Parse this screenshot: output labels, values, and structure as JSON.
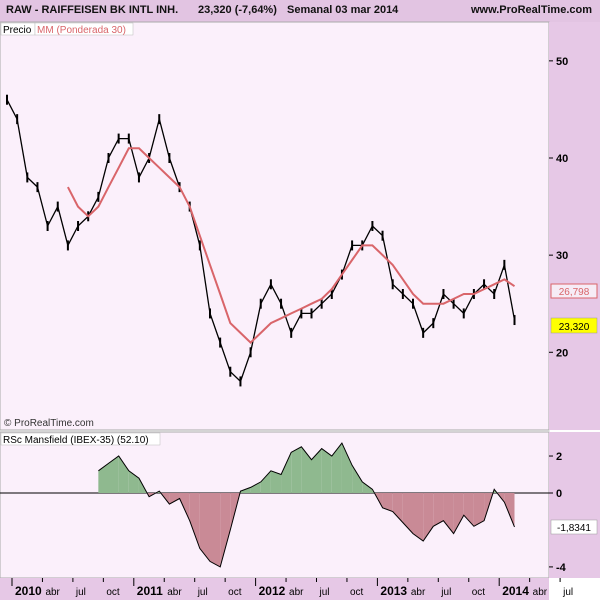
{
  "header": {
    "ticker": "RAW - RAIFFEISEN BK INTL INH.",
    "last_change": "23,320 (-7,64%)",
    "period": "Semanal  03 mar 2014",
    "site": "www.ProRealTime.com"
  },
  "price_panel": {
    "legend_price": "Precio",
    "legend_ma": "MM (Ponderada 30)",
    "copyright": "© ProRealTime.com",
    "last_price_label": "23,320",
    "last_ma_label": "26,798"
  },
  "rsc_panel": {
    "legend": "RSc Mansfield (IBEX-35) (52.10)",
    "last_value_label": "-1,8341"
  },
  "colors": {
    "panel_bg": "#fbf0fb",
    "axis_bg": "#e6c8e6",
    "ma_line": "#d9656a",
    "positive_fill": "#8fb98f",
    "negative_fill": "#c98a96",
    "last_price_box": "#ffff00"
  },
  "chart_data": [
    {
      "type": "line",
      "name": "price",
      "x_axis_labels": [
        "2010",
        "abr",
        "jul",
        "oct",
        "2011",
        "abr",
        "jul",
        "oct",
        "2012",
        "abr",
        "jul",
        "oct",
        "2013",
        "abr",
        "jul",
        "oct",
        "2014",
        "abr",
        "jul"
      ],
      "ylim": [
        12,
        54
      ],
      "y_ticks": [
        20,
        30,
        40,
        50
      ],
      "y_tick_labels": [
        "20",
        "30",
        "40",
        "50"
      ],
      "series": [
        {
          "name": "Precio",
          "x": [
            "2010-01",
            "2010-02",
            "2010-03",
            "2010-04",
            "2010-05",
            "2010-06",
            "2010-07",
            "2010-08",
            "2010-09",
            "2010-10",
            "2010-11",
            "2010-12",
            "2011-01",
            "2011-02",
            "2011-03",
            "2011-04",
            "2011-05",
            "2011-06",
            "2011-07",
            "2011-08",
            "2011-09",
            "2011-10",
            "2011-11",
            "2011-12",
            "2012-01",
            "2012-02",
            "2012-03",
            "2012-04",
            "2012-05",
            "2012-06",
            "2012-07",
            "2012-08",
            "2012-09",
            "2012-10",
            "2012-11",
            "2012-12",
            "2013-01",
            "2013-02",
            "2013-03",
            "2013-04",
            "2013-05",
            "2013-06",
            "2013-07",
            "2013-08",
            "2013-09",
            "2013-10",
            "2013-11",
            "2013-12",
            "2014-01",
            "2014-02",
            "2014-03"
          ],
          "values": [
            46,
            44,
            38,
            37,
            33,
            35,
            31,
            33,
            34,
            36,
            40,
            42,
            42,
            38,
            40,
            44,
            40,
            37,
            35,
            31,
            24,
            21,
            18,
            17,
            20,
            25,
            27,
            25,
            22,
            24,
            24,
            25,
            26,
            28,
            31,
            31,
            33,
            32,
            27,
            26,
            25,
            22,
            23,
            26,
            25,
            24,
            26,
            27,
            26,
            29,
            23.32
          ]
        },
        {
          "name": "MM (Ponderada 30)",
          "x": [
            "2010-07",
            "2010-08",
            "2010-09",
            "2010-10",
            "2010-11",
            "2010-12",
            "2011-01",
            "2011-02",
            "2011-03",
            "2011-04",
            "2011-05",
            "2011-06",
            "2011-07",
            "2011-08",
            "2011-09",
            "2011-10",
            "2011-11",
            "2011-12",
            "2012-01",
            "2012-02",
            "2012-03",
            "2012-04",
            "2012-05",
            "2012-06",
            "2012-07",
            "2012-08",
            "2012-09",
            "2012-10",
            "2012-11",
            "2012-12",
            "2013-01",
            "2013-02",
            "2013-03",
            "2013-04",
            "2013-05",
            "2013-06",
            "2013-07",
            "2013-08",
            "2013-09",
            "2013-10",
            "2013-11",
            "2013-12",
            "2014-01",
            "2014-02",
            "2014-03"
          ],
          "values": [
            37,
            35,
            34,
            35,
            37,
            39,
            41,
            41,
            40,
            39,
            38,
            37,
            35,
            32,
            29,
            26,
            23,
            22,
            21,
            22,
            23,
            23.5,
            24,
            24.5,
            25,
            25.5,
            26.5,
            28,
            29.5,
            31,
            31,
            30,
            29,
            27.5,
            26,
            25,
            25,
            25,
            25.5,
            26,
            26,
            26.5,
            27,
            27.5,
            26.8
          ]
        }
      ]
    },
    {
      "type": "area",
      "name": "rsc_mansfield",
      "ylim": [
        -4.6,
        3.3
      ],
      "y_ticks": [
        2,
        0,
        -4
      ],
      "y_tick_labels": [
        "2",
        "0",
        "-4"
      ],
      "series": [
        {
          "name": "RSc Mansfield (IBEX-35) (52.10)",
          "x": [
            "2010-10",
            "2010-11",
            "2010-12",
            "2011-01",
            "2011-02",
            "2011-03",
            "2011-04",
            "2011-05",
            "2011-06",
            "2011-07",
            "2011-08",
            "2011-09",
            "2011-10",
            "2011-11",
            "2011-12",
            "2012-01",
            "2012-02",
            "2012-03",
            "2012-04",
            "2012-05",
            "2012-06",
            "2012-07",
            "2012-08",
            "2012-09",
            "2012-10",
            "2012-11",
            "2012-12",
            "2013-01",
            "2013-02",
            "2013-03",
            "2013-04",
            "2013-05",
            "2013-06",
            "2013-07",
            "2013-08",
            "2013-09",
            "2013-10",
            "2013-11",
            "2013-12",
            "2014-01",
            "2014-02",
            "2014-03"
          ],
          "values": [
            1.2,
            1.6,
            2.0,
            1.2,
            0.8,
            -0.2,
            0.1,
            -0.6,
            -0.3,
            -1.5,
            -3.0,
            -3.7,
            -4.0,
            -2.0,
            0.1,
            0.3,
            0.6,
            1.2,
            1.0,
            2.2,
            2.5,
            1.8,
            2.4,
            2.0,
            2.7,
            1.5,
            0.6,
            0.2,
            -0.8,
            -1.0,
            -1.6,
            -2.2,
            -2.6,
            -1.8,
            -1.5,
            -2.2,
            -1.2,
            -1.8,
            -1.5,
            0.2,
            -0.5,
            -1.8341
          ]
        }
      ]
    }
  ]
}
